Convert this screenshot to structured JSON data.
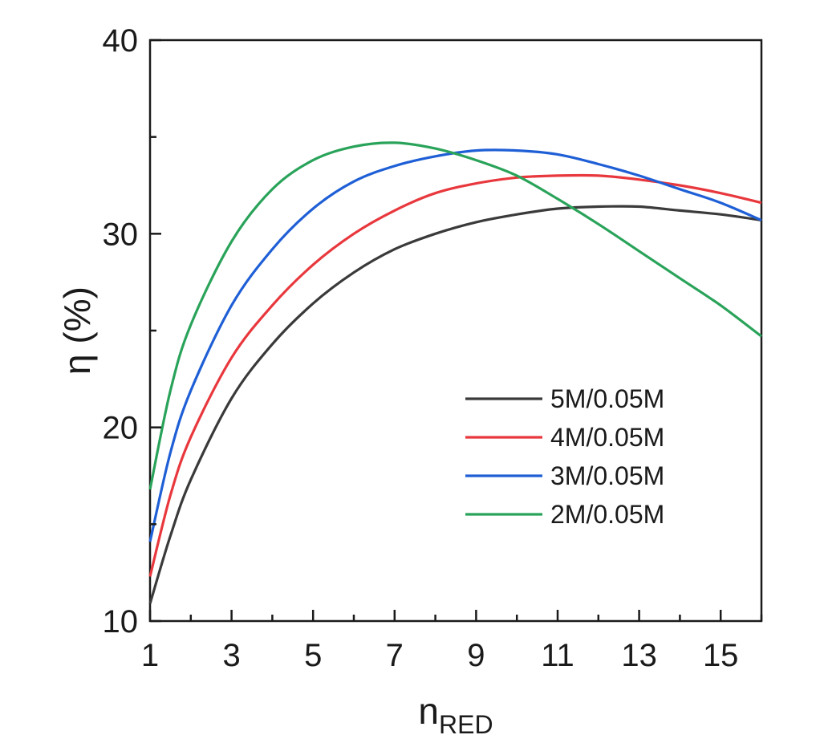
{
  "chart_data": {
    "type": "line",
    "xlabel": "n",
    "xlabel_sub": "RED",
    "ylabel": "η (%)",
    "xlim": [
      1,
      16
    ],
    "ylim": [
      10,
      40
    ],
    "x_ticks": [
      1,
      3,
      5,
      7,
      9,
      11,
      13,
      15
    ],
    "y_ticks": [
      10,
      20,
      30,
      40
    ],
    "grid": false,
    "legend_position": "bottom-right",
    "x": [
      1,
      1.5,
      2,
      3,
      4,
      5,
      6,
      7,
      8,
      9,
      10,
      11,
      12,
      13,
      14,
      15,
      16
    ],
    "series": [
      {
        "name": "5M/0.05M",
        "color": "#3a3a3a",
        "values": [
          10.9,
          14.4,
          17.3,
          21.5,
          24.3,
          26.4,
          28.0,
          29.2,
          30.0,
          30.6,
          31.0,
          31.3,
          31.4,
          31.4,
          31.2,
          31.0,
          30.7
        ]
      },
      {
        "name": "4M/0.05M",
        "color": "#e8383d",
        "values": [
          12.3,
          16.5,
          19.5,
          23.6,
          26.3,
          28.4,
          30.0,
          31.2,
          32.1,
          32.6,
          32.9,
          33.0,
          33.0,
          32.8,
          32.5,
          32.1,
          31.6
        ]
      },
      {
        "name": "3M/0.05M",
        "color": "#1f5fd6",
        "values": [
          14.1,
          18.7,
          21.9,
          26.3,
          29.2,
          31.3,
          32.7,
          33.5,
          34.0,
          34.3,
          34.3,
          34.1,
          33.6,
          33.0,
          32.3,
          31.6,
          30.7
        ]
      },
      {
        "name": "2M/0.05M",
        "color": "#2aa35a",
        "values": [
          16.8,
          21.9,
          25.3,
          29.6,
          32.3,
          33.8,
          34.5,
          34.7,
          34.4,
          33.8,
          33.0,
          31.8,
          30.5,
          29.1,
          27.7,
          26.3,
          24.7
        ]
      }
    ]
  }
}
